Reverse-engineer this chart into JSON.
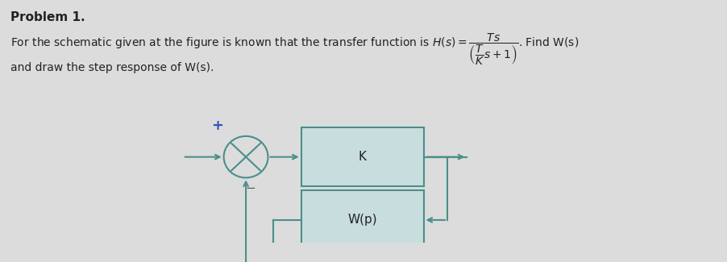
{
  "background_color": "#dcdcdc",
  "title_text": "Problem 1.",
  "line2_text": "and draw the step response of W(s).",
  "block_K_label": "K",
  "block_Wp_label": "W(p)",
  "plus_label": "+",
  "minus_label": "−",
  "teal_color": "#4a8f8a",
  "plus_color": "#3355bb",
  "minus_color": "#555555",
  "text_color": "#222222",
  "box_bg": "#c8dede",
  "box_edge": "#4a8f8a"
}
